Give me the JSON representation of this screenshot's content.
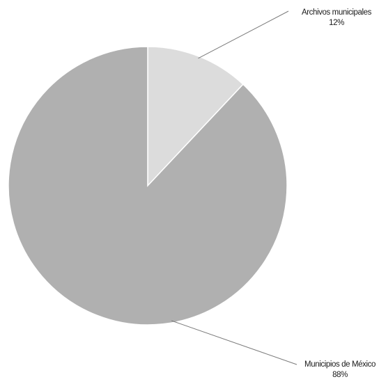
{
  "chart_data": {
    "type": "pie",
    "title": "",
    "categories": [
      "Archivos municipales",
      "Municipios de México"
    ],
    "values": [
      12,
      88
    ],
    "labels": [
      {
        "name": "Archivos municipales",
        "percent": "12%"
      },
      {
        "name": "Municipios de México",
        "percent": "88%"
      }
    ],
    "colors": [
      "#dcdcdc",
      "#b0b0b0"
    ],
    "start_angle_deg": 0,
    "direction": "clockwise",
    "legend": "none"
  }
}
